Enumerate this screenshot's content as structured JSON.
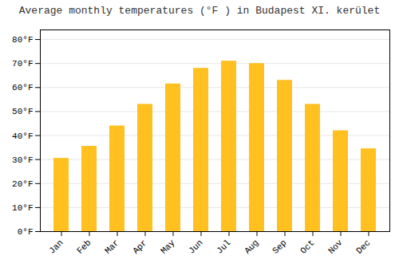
{
  "chart_data": {
    "type": "bar",
    "title": "Average monthly temperatures (°F ) in Budapest XI. kerület",
    "categories": [
      "Jan",
      "Feb",
      "Mar",
      "Apr",
      "May",
      "Jun",
      "Jul",
      "Aug",
      "Sep",
      "Oct",
      "Nov",
      "Dec"
    ],
    "values": [
      30.5,
      35.5,
      44.0,
      53.0,
      61.5,
      68.0,
      71.0,
      70.0,
      63.0,
      53.0,
      42.0,
      34.5
    ],
    "color": "#FFC020",
    "ylim": [
      0,
      84
    ],
    "yticks": [
      {
        "value": 0,
        "label": "0°F"
      },
      {
        "value": 10,
        "label": "10°F"
      },
      {
        "value": 20,
        "label": "20°F"
      },
      {
        "value": 30,
        "label": "30°F"
      },
      {
        "value": 40,
        "label": "40°F"
      },
      {
        "value": 50,
        "label": "50°F"
      },
      {
        "value": 60,
        "label": "60°F"
      },
      {
        "value": 70,
        "label": "70°F"
      },
      {
        "value": 80,
        "label": "80°F"
      }
    ],
    "grid": true
  }
}
